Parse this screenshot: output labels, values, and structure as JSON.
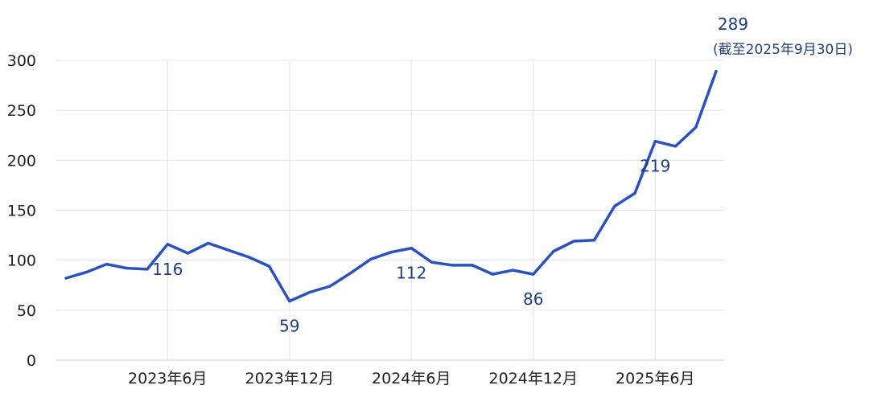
{
  "chart_data": {
    "type": "line",
    "ylim": [
      0,
      300
    ],
    "yticks": [
      "0",
      "50",
      "100",
      "150",
      "200",
      "250",
      "300"
    ],
    "xticks": [
      {
        "index": 5,
        "label": "2023年6月"
      },
      {
        "index": 11,
        "label": "2023年12月"
      },
      {
        "index": 17,
        "label": "2024年6月"
      },
      {
        "index": 23,
        "label": "2024年12月"
      },
      {
        "index": 29,
        "label": "2025年6月"
      }
    ],
    "series": [
      {
        "color": "#2a52be",
        "values": [
          82,
          88,
          96,
          92,
          91,
          116,
          107,
          117,
          110,
          103,
          94,
          59,
          68,
          74,
          87,
          101,
          108,
          112,
          98,
          95,
          95,
          86,
          90,
          86,
          109,
          119,
          120,
          154,
          167,
          219,
          214,
          233,
          289
        ]
      }
    ],
    "annotations": [
      {
        "index": 5,
        "value": 116,
        "text": "116"
      },
      {
        "index": 11,
        "value": 59,
        "text": "59"
      },
      {
        "index": 17,
        "value": 112,
        "text": "112"
      },
      {
        "index": 23,
        "value": 86,
        "text": "86"
      },
      {
        "index": 29,
        "value": 219,
        "text": "219"
      },
      {
        "index": 32,
        "value": 289,
        "text": "289",
        "note": "(截至2025年9月30日)"
      }
    ],
    "grid": true
  }
}
